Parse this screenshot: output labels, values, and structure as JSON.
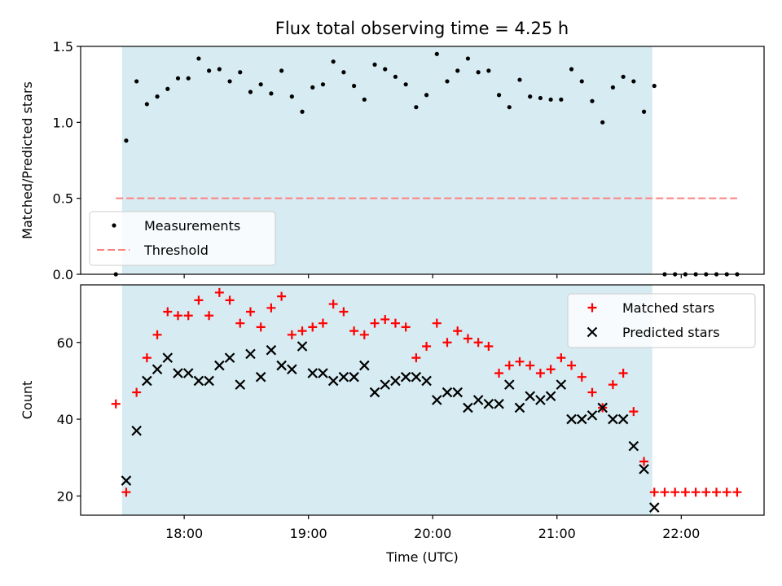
{
  "title": "Flux total observing time = 4.25 h",
  "colors": {
    "shade": "#add8e6",
    "threshold": "#ff7f7f",
    "matched": "#ff0000",
    "predicted": "#000000",
    "measurement": "#000000"
  },
  "chart_data": [
    {
      "type": "scatter",
      "ylabel": "Matched/Predicted stars",
      "xlabel": "",
      "ylim": [
        0,
        1.5
      ],
      "yticks": [
        0.0,
        0.5,
        1.0,
        1.5
      ],
      "ytick_labels": [
        "0.0",
        "0.5",
        "1.0",
        "1.5"
      ],
      "shaded_interval": [
        "17:30",
        "21:46"
      ],
      "legend_position": "bottom-left",
      "series": [
        {
          "name": "Measurements",
          "marker": "dot",
          "x": [
            "17:27",
            "17:32",
            "17:37",
            "17:42",
            "17:47",
            "17:52",
            "17:57",
            "18:02",
            "18:07",
            "18:12",
            "18:17",
            "18:22",
            "18:27",
            "18:32",
            "18:37",
            "18:42",
            "18:47",
            "18:52",
            "18:57",
            "19:02",
            "19:07",
            "19:12",
            "19:17",
            "19:22",
            "19:27",
            "19:32",
            "19:37",
            "19:42",
            "19:47",
            "19:52",
            "19:57",
            "20:02",
            "20:07",
            "20:12",
            "20:17",
            "20:22",
            "20:27",
            "20:32",
            "20:37",
            "20:42",
            "20:47",
            "20:52",
            "20:57",
            "21:02",
            "21:07",
            "21:12",
            "21:17",
            "21:22",
            "21:27",
            "21:32",
            "21:37",
            "21:42",
            "21:47",
            "21:52",
            "21:57",
            "22:02",
            "22:07",
            "22:12",
            "22:17",
            "22:22",
            "22:27"
          ],
          "values": [
            0.0,
            0.88,
            1.27,
            1.12,
            1.17,
            1.22,
            1.29,
            1.29,
            1.42,
            1.34,
            1.35,
            1.27,
            1.33,
            1.2,
            1.25,
            1.19,
            1.34,
            1.17,
            1.07,
            1.23,
            1.25,
            1.4,
            1.33,
            1.24,
            1.15,
            1.38,
            1.35,
            1.3,
            1.25,
            1.1,
            1.18,
            1.45,
            1.27,
            1.34,
            1.42,
            1.33,
            1.34,
            1.18,
            1.1,
            1.28,
            1.17,
            1.16,
            1.15,
            1.15,
            1.35,
            1.27,
            1.14,
            1.0,
            1.23,
            1.3,
            1.27,
            1.07,
            1.24,
            0.0,
            0.0,
            0.0,
            0.0,
            0.0,
            0.0,
            0.0,
            0.0
          ]
        },
        {
          "name": "Threshold",
          "marker": "dashed-line",
          "x": [
            "17:27",
            "22:27"
          ],
          "values": [
            0.5,
            0.5
          ]
        }
      ]
    },
    {
      "type": "scatter",
      "ylabel": "Count",
      "xlabel": "Time (UTC)",
      "ylim": [
        15,
        75
      ],
      "yticks": [
        20,
        40,
        60
      ],
      "ytick_labels": [
        "20",
        "40",
        "60"
      ],
      "xticks": [
        "18:00",
        "19:00",
        "20:00",
        "21:00",
        "22:00"
      ],
      "xtick_labels": [
        "18:00",
        "19:00",
        "20:00",
        "21:00",
        "22:00"
      ],
      "xlim": [
        "17:10",
        "22:40"
      ],
      "shaded_interval": [
        "17:30",
        "21:46"
      ],
      "legend_position": "top-right",
      "series": [
        {
          "name": "Matched stars",
          "marker": "plus",
          "x": [
            "17:27",
            "17:32",
            "17:37",
            "17:42",
            "17:47",
            "17:52",
            "17:57",
            "18:02",
            "18:07",
            "18:12",
            "18:17",
            "18:22",
            "18:27",
            "18:32",
            "18:37",
            "18:42",
            "18:47",
            "18:52",
            "18:57",
            "19:02",
            "19:07",
            "19:12",
            "19:17",
            "19:22",
            "19:27",
            "19:32",
            "19:37",
            "19:42",
            "19:47",
            "19:52",
            "19:57",
            "20:02",
            "20:07",
            "20:12",
            "20:17",
            "20:22",
            "20:27",
            "20:32",
            "20:37",
            "20:42",
            "20:47",
            "20:52",
            "20:57",
            "21:02",
            "21:07",
            "21:12",
            "21:17",
            "21:22",
            "21:27",
            "21:32",
            "21:37",
            "21:42",
            "21:47",
            "21:52",
            "21:57",
            "22:02",
            "22:07",
            "22:12",
            "22:17",
            "22:22",
            "22:27"
          ],
          "values": [
            44,
            21,
            47,
            56,
            62,
            68,
            67,
            67,
            71,
            67,
            73,
            71,
            65,
            68,
            64,
            69,
            72,
            62,
            63,
            64,
            65,
            70,
            68,
            63,
            62,
            65,
            66,
            65,
            64,
            56,
            59,
            65,
            60,
            63,
            61,
            60,
            59,
            52,
            54,
            55,
            54,
            52,
            53,
            56,
            54,
            51,
            47,
            43,
            49,
            52,
            42,
            29,
            21,
            21,
            21,
            21,
            21,
            21,
            21,
            21,
            21
          ]
        },
        {
          "name": "Predicted stars",
          "marker": "x",
          "x": [
            "17:32",
            "17:37",
            "17:42",
            "17:47",
            "17:52",
            "17:57",
            "18:02",
            "18:07",
            "18:12",
            "18:17",
            "18:22",
            "18:27",
            "18:32",
            "18:37",
            "18:42",
            "18:47",
            "18:52",
            "18:57",
            "19:02",
            "19:07",
            "19:12",
            "19:17",
            "19:22",
            "19:27",
            "19:32",
            "19:37",
            "19:42",
            "19:47",
            "19:52",
            "19:57",
            "20:02",
            "20:07",
            "20:12",
            "20:17",
            "20:22",
            "20:27",
            "20:32",
            "20:37",
            "20:42",
            "20:47",
            "20:52",
            "20:57",
            "21:02",
            "21:07",
            "21:12",
            "21:17",
            "21:22",
            "21:27",
            "21:32",
            "21:37",
            "21:42",
            "21:47"
          ],
          "values": [
            24,
            37,
            50,
            53,
            56,
            52,
            52,
            50,
            50,
            54,
            56,
            49,
            57,
            51,
            58,
            54,
            53,
            59,
            52,
            52,
            50,
            51,
            51,
            54,
            47,
            49,
            50,
            51,
            51,
            50,
            45,
            47,
            47,
            43,
            45,
            44,
            44,
            49,
            43,
            46,
            45,
            46,
            49,
            40,
            40,
            41,
            43,
            40,
            40,
            33,
            27,
            17
          ]
        }
      ]
    }
  ]
}
